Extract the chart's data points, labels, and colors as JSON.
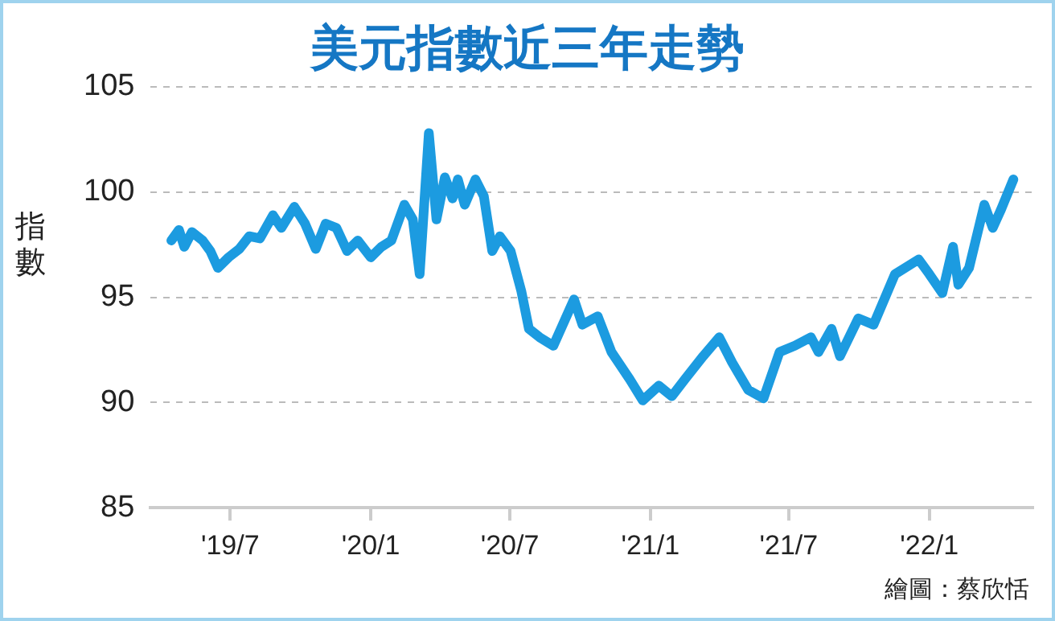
{
  "chart_data": {
    "type": "line",
    "title": "美元指數近三年走勢",
    "ylabel": "指數",
    "annotations": [
      "繪圖：蔡欣恬"
    ],
    "x": [
      "2019-04-15",
      "2019-04-25",
      "2019-05-02",
      "2019-05-12",
      "2019-05-26",
      "2019-06-05",
      "2019-06-15",
      "2019-06-29",
      "2019-07-13",
      "2019-07-26",
      "2019-08-09",
      "2019-08-26",
      "2019-09-06",
      "2019-09-23",
      "2019-10-07",
      "2019-10-21",
      "2019-11-03",
      "2019-11-17",
      "2019-12-01",
      "2019-12-15",
      "2020-01-01",
      "2020-01-15",
      "2020-01-28",
      "2020-02-14",
      "2020-02-25",
      "2020-03-05",
      "2020-03-17",
      "2020-03-27",
      "2020-04-07",
      "2020-04-17",
      "2020-04-24",
      "2020-05-03",
      "2020-05-17",
      "2020-05-28",
      "2020-06-08",
      "2020-06-18",
      "2020-07-02",
      "2020-07-16",
      "2020-07-26",
      "2020-08-09",
      "2020-08-27",
      "2020-09-23",
      "2020-10-04",
      "2020-10-24",
      "2020-11-11",
      "2020-12-05",
      "2020-12-22",
      "2021-01-12",
      "2021-01-29",
      "2021-02-15",
      "2021-03-11",
      "2021-04-01",
      "2021-04-18",
      "2021-05-09",
      "2021-05-29",
      "2021-06-19",
      "2021-07-09",
      "2021-07-30",
      "2021-08-09",
      "2021-08-26",
      "2021-09-06",
      "2021-09-30",
      "2021-10-20",
      "2021-11-17",
      "2021-12-18",
      "2022-01-01",
      "2022-01-18",
      "2022-02-01",
      "2022-02-08",
      "2022-02-22",
      "2022-03-14",
      "2022-03-25",
      "2022-04-04",
      "2022-04-21"
    ],
    "series": [
      {
        "color": "#1c9be0",
        "values": [
          97.7,
          98.2,
          97.4,
          98.1,
          97.7,
          97.2,
          96.4,
          96.9,
          97.3,
          97.9,
          97.8,
          98.9,
          98.3,
          99.3,
          98.5,
          97.3,
          98.5,
          98.3,
          97.2,
          97.7,
          96.9,
          97.4,
          97.7,
          99.4,
          98.7,
          96.1,
          102.8,
          98.7,
          100.7,
          99.7,
          100.6,
          99.4,
          100.6,
          99.8,
          97.2,
          97.9,
          97.2,
          95.3,
          93.5,
          93.1,
          92.7,
          94.9,
          93.7,
          94.1,
          92.4,
          91.1,
          90.1,
          90.8,
          90.3,
          91.1,
          92.2,
          93.1,
          91.9,
          90.6,
          90.2,
          92.4,
          92.7,
          93.1,
          92.4,
          93.5,
          92.2,
          94.0,
          93.7,
          96.1,
          96.8,
          96.1,
          95.2,
          97.4,
          95.6,
          96.4,
          99.4,
          98.3,
          99.1,
          100.6
        ]
      }
    ],
    "xlim": [
      "2019-03-19",
      "2022-05-16"
    ],
    "xticks": [
      {
        "value": "2019-07-01",
        "label": "'19/7"
      },
      {
        "value": "2020-01-01",
        "label": "'20/1"
      },
      {
        "value": "2020-07-01",
        "label": "'20/7"
      },
      {
        "value": "2021-01-01",
        "label": "'21/1"
      },
      {
        "value": "2021-07-01",
        "label": "'21/7"
      },
      {
        "value": "2022-01-01",
        "label": "'22/1"
      }
    ],
    "ylim": [
      85,
      105
    ],
    "yticks": [
      85,
      90,
      95,
      100,
      105
    ],
    "grid": "y",
    "legend": false,
    "marker": "none",
    "line_style": "solid"
  }
}
